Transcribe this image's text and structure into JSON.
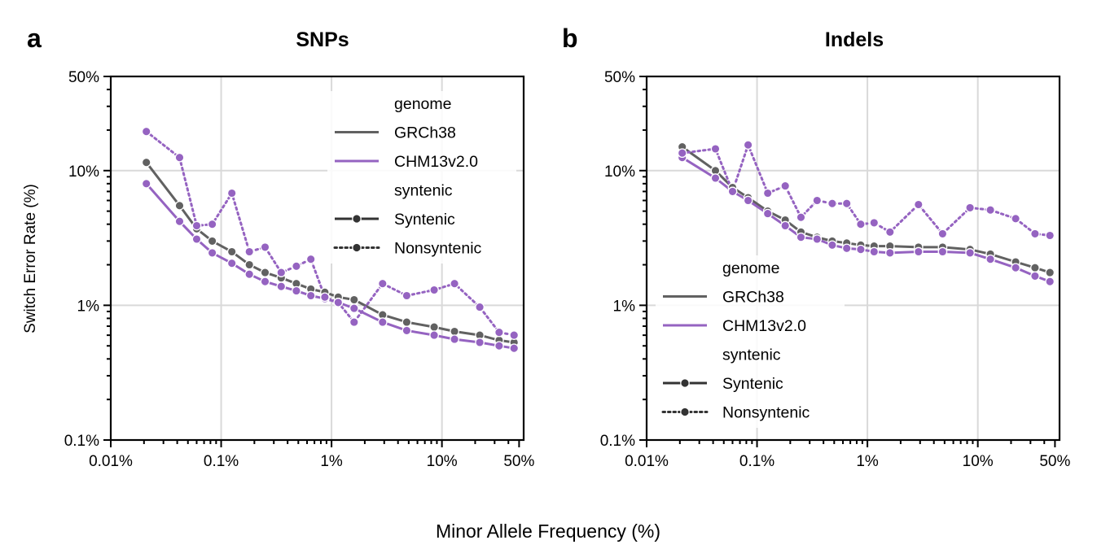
{
  "figure": {
    "xlabel": "Minor Allele Frequency (%)",
    "ylabel": "Switch Error Rate (%)"
  },
  "colors": {
    "GRCh38": "#616161",
    "CHM13v2.0": "#9563c1",
    "legend_style_marker": "#333333"
  },
  "chart_data": [
    {
      "type": "line",
      "letter": "a",
      "title": "SNPs",
      "xlabel": "",
      "ylabel": "Switch Error Rate (%)",
      "x_scale": "log",
      "y_scale": "log",
      "xlim": [
        0.01,
        55
      ],
      "ylim": [
        0.1,
        50
      ],
      "x_ticks": [
        {
          "value": 0.01,
          "label": "0.01%"
        },
        {
          "value": 0.1,
          "label": "0.1%"
        },
        {
          "value": 1,
          "label": "1%"
        },
        {
          "value": 10,
          "label": "10%"
        },
        {
          "value": 50,
          "label": "50%"
        }
      ],
      "y_ticks": [
        {
          "value": 0.1,
          "label": "0.1%"
        },
        {
          "value": 1,
          "label": "1%"
        },
        {
          "value": 10,
          "label": "10%"
        },
        {
          "value": 50,
          "label": "50%"
        }
      ],
      "grid": true,
      "legend": {
        "position": "top-right",
        "genome_title": "genome",
        "genome_entries": [
          "GRCh38",
          "CHM13v2.0"
        ],
        "syntenic_title": "syntenic",
        "syntenic_entries": [
          "Syntenic",
          "Nonsyntenic"
        ]
      },
      "series": [
        {
          "name": "GRCh38",
          "genome": "GRCh38",
          "syntenic": "Syntenic",
          "x": [
            0.021,
            0.042,
            0.06,
            0.083,
            0.125,
            0.18,
            0.25,
            0.35,
            0.48,
            0.65,
            0.87,
            1.15,
            1.6,
            2.9,
            4.8,
            8.5,
            13,
            22,
            33,
            45
          ],
          "y": [
            11.5,
            5.5,
            3.7,
            3.0,
            2.5,
            2.0,
            1.75,
            1.6,
            1.45,
            1.32,
            1.25,
            1.15,
            1.1,
            0.85,
            0.75,
            0.69,
            0.64,
            0.6,
            0.55,
            0.53
          ]
        },
        {
          "name": "CHM13v2.0",
          "genome": "CHM13v2.0",
          "syntenic": "Syntenic",
          "x": [
            0.021,
            0.042,
            0.06,
            0.083,
            0.125,
            0.18,
            0.25,
            0.35,
            0.48,
            0.65,
            0.87,
            1.15,
            1.6,
            2.9,
            4.8,
            8.5,
            13,
            22,
            33,
            45
          ],
          "y": [
            8.0,
            4.2,
            3.1,
            2.45,
            2.05,
            1.7,
            1.5,
            1.38,
            1.28,
            1.18,
            1.12,
            1.05,
            0.95,
            0.75,
            0.65,
            0.6,
            0.56,
            0.53,
            0.5,
            0.48
          ]
        },
        {
          "name": "CHM13v2.0",
          "genome": "CHM13v2.0",
          "syntenic": "Nonsyntenic",
          "x": [
            0.021,
            0.042,
            0.06,
            0.083,
            0.125,
            0.18,
            0.25,
            0.35,
            0.48,
            0.65,
            0.87,
            1.15,
            1.6,
            2.9,
            4.8,
            8.5,
            13,
            22,
            33,
            45
          ],
          "y": [
            19.5,
            12.5,
            3.9,
            4.0,
            6.8,
            2.5,
            2.7,
            1.75,
            1.95,
            2.2,
            1.15,
            1.05,
            0.75,
            1.45,
            1.18,
            1.3,
            1.45,
            0.97,
            0.63,
            0.6
          ]
        }
      ]
    },
    {
      "type": "line",
      "letter": "b",
      "title": "Indels",
      "xlabel": "",
      "ylabel": "",
      "x_scale": "log",
      "y_scale": "log",
      "xlim": [
        0.01,
        55
      ],
      "ylim": [
        0.1,
        50
      ],
      "x_ticks": [
        {
          "value": 0.01,
          "label": "0.01%"
        },
        {
          "value": 0.1,
          "label": "0.1%"
        },
        {
          "value": 1,
          "label": "1%"
        },
        {
          "value": 10,
          "label": "10%"
        },
        {
          "value": 50,
          "label": "50%"
        }
      ],
      "y_ticks": [
        {
          "value": 0.1,
          "label": "0.1%"
        },
        {
          "value": 1,
          "label": "1%"
        },
        {
          "value": 10,
          "label": "10%"
        },
        {
          "value": 50,
          "label": "50%"
        }
      ],
      "grid": true,
      "legend": {
        "position": "lower-left",
        "genome_title": "genome",
        "genome_entries": [
          "GRCh38",
          "CHM13v2.0"
        ],
        "syntenic_title": "syntenic",
        "syntenic_entries": [
          "Syntenic",
          "Nonsyntenic"
        ]
      },
      "series": [
        {
          "name": "GRCh38",
          "genome": "GRCh38",
          "syntenic": "Syntenic",
          "x": [
            0.021,
            0.042,
            0.06,
            0.083,
            0.125,
            0.18,
            0.25,
            0.35,
            0.48,
            0.65,
            0.87,
            1.15,
            1.6,
            2.9,
            4.8,
            8.5,
            13,
            22,
            33,
            45
          ],
          "y": [
            15.0,
            10.0,
            7.5,
            6.3,
            5.0,
            4.3,
            3.5,
            3.2,
            3.0,
            2.9,
            2.8,
            2.75,
            2.75,
            2.7,
            2.7,
            2.6,
            2.4,
            2.1,
            1.9,
            1.75
          ]
        },
        {
          "name": "CHM13v2.0",
          "genome": "CHM13v2.0",
          "syntenic": "Syntenic",
          "x": [
            0.021,
            0.042,
            0.06,
            0.083,
            0.125,
            0.18,
            0.25,
            0.35,
            0.48,
            0.65,
            0.87,
            1.15,
            1.6,
            2.9,
            4.8,
            8.5,
            13,
            22,
            33,
            45
          ],
          "y": [
            12.5,
            8.8,
            7.0,
            6.0,
            4.8,
            3.9,
            3.2,
            3.1,
            2.8,
            2.65,
            2.6,
            2.5,
            2.45,
            2.5,
            2.5,
            2.45,
            2.2,
            1.9,
            1.65,
            1.5
          ]
        },
        {
          "name": "CHM13v2.0",
          "genome": "CHM13v2.0",
          "syntenic": "Nonsyntenic",
          "x": [
            0.021,
            0.042,
            0.06,
            0.083,
            0.125,
            0.18,
            0.25,
            0.35,
            0.48,
            0.65,
            0.87,
            1.15,
            1.6,
            2.9,
            4.8,
            8.5,
            13,
            22,
            33,
            45
          ],
          "y": [
            13.5,
            14.5,
            7.0,
            15.5,
            6.8,
            7.7,
            4.5,
            6.0,
            5.7,
            5.7,
            4.0,
            4.1,
            3.5,
            5.6,
            3.4,
            5.3,
            5.1,
            4.4,
            3.4,
            3.3
          ]
        }
      ]
    }
  ]
}
